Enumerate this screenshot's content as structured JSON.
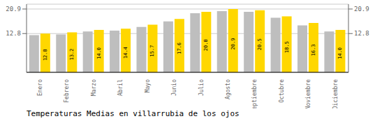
{
  "chart_data": {
    "type": "bar",
    "title": "Temperaturas Medias en villarrubia de los ojos",
    "categories": [
      "Enero",
      "Febrero",
      "Marzo",
      "Abril",
      "Mayo",
      "Junio",
      "Julio",
      "Agosto",
      "Septiembre",
      "Octubre",
      "Noviembre",
      "Diciembre"
    ],
    "series": [
      {
        "color": "#BEBEBE",
        "values": [
          12.3,
          12.5,
          13.5,
          13.8,
          15.0,
          16.8,
          19.5,
          20.2,
          20.0,
          18.0,
          15.5,
          13.5
        ]
      },
      {
        "color": "#FFD700",
        "values": [
          12.8,
          13.2,
          14.0,
          14.4,
          15.7,
          17.6,
          20.0,
          20.9,
          20.5,
          18.5,
          16.3,
          14.0
        ],
        "data_labels": true,
        "value_labels": [
          "12.8",
          "13.2",
          "14.0",
          "14.4",
          "15.7",
          "17.6",
          "20.0",
          "20.9",
          "20.5",
          "18.5",
          "16.3",
          "14.0"
        ]
      }
    ],
    "ylim": [
      0,
      22.5
    ],
    "yticks": [
      12.8,
      20.9
    ],
    "grid": true
  }
}
